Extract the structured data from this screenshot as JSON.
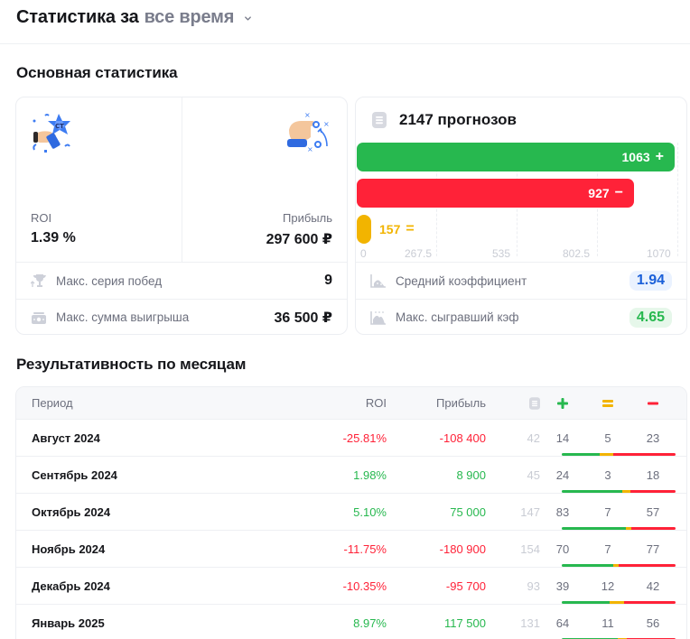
{
  "header": {
    "title_prefix": "Статистика за",
    "period_selector": "все время",
    "chevron_icon": "chevron-down-icon"
  },
  "main_stats": {
    "section_title": "Основная статистика",
    "kpis": [
      {
        "label": "ROI",
        "value": "1.39 %",
        "illustration": "trophy-star-illustration"
      },
      {
        "label": "Прибыль",
        "value": "297 600 ₽",
        "illustration": "tactics-hand-illustration"
      }
    ],
    "rows": [
      {
        "icon": "trophy-icon",
        "label": "Макс. серия побед",
        "value": "9"
      },
      {
        "icon": "cash-icon",
        "label": "Макс. сумма выигрыша",
        "value": "36 500 ₽"
      }
    ]
  },
  "forecasts": {
    "icon": "document-icon",
    "title": "2147 прогнозов",
    "bars": [
      {
        "label": "1063",
        "symbol": "+",
        "value": 1063,
        "color": "#27b84f"
      },
      {
        "label": "927",
        "symbol": "−",
        "value": 927,
        "color": "#ff2238"
      },
      {
        "label": "157",
        "symbol": "=",
        "value": 157,
        "color": "#f2b400"
      }
    ],
    "ticks": [
      "0",
      "267.5",
      "535",
      "802.5",
      "1070"
    ],
    "rows": [
      {
        "icon": "chart-area-icon",
        "label": "Средний коэффициент",
        "value": "1.94",
        "color": "#1a5fd9"
      },
      {
        "icon": "chart-peak-icon",
        "label": "Макс. сыгравший кэф",
        "value": "4.65",
        "color": "#27b84f"
      }
    ]
  },
  "chart_data": {
    "type": "bar",
    "orientation": "horizontal",
    "title": "2147 прогнозов",
    "categories": [
      "+",
      "−",
      "="
    ],
    "values": [
      1063,
      927,
      157
    ],
    "colors": [
      "#27b84f",
      "#ff2238",
      "#f2b400"
    ],
    "xlim": [
      0,
      1070
    ],
    "xticks": [
      0,
      267.5,
      535,
      802.5,
      1070
    ],
    "grid": true
  },
  "monthly": {
    "section_title": "Результативность по месяцам",
    "columns": {
      "period": "Период",
      "roi": "ROI",
      "profit": "Прибыль",
      "total_icon": "document-icon",
      "win_icon": "plus-icon",
      "draw_icon": "equals-icon",
      "loss_icon": "minus-icon"
    },
    "rows": [
      {
        "period": "Август 2024",
        "roi": "-25.81%",
        "profit": "-108 400",
        "total": "42",
        "win": "14",
        "draw": "5",
        "loss": "23",
        "positive": false
      },
      {
        "period": "Сентябрь 2024",
        "roi": "1.98%",
        "profit": "8 900",
        "total": "45",
        "win": "24",
        "draw": "3",
        "loss": "18",
        "positive": true
      },
      {
        "period": "Октябрь 2024",
        "roi": "5.10%",
        "profit": "75 000",
        "total": "147",
        "win": "83",
        "draw": "7",
        "loss": "57",
        "positive": true
      },
      {
        "period": "Ноябрь 2024",
        "roi": "-11.75%",
        "profit": "-180 900",
        "total": "154",
        "win": "70",
        "draw": "7",
        "loss": "77",
        "positive": false
      },
      {
        "period": "Декабрь 2024",
        "roi": "-10.35%",
        "profit": "-95 700",
        "total": "93",
        "win": "39",
        "draw": "12",
        "loss": "42",
        "positive": false
      },
      {
        "period": "Январь 2025",
        "roi": "8.97%",
        "profit": "117 500",
        "total": "131",
        "win": "64",
        "draw": "11",
        "loss": "56",
        "positive": true
      }
    ]
  }
}
